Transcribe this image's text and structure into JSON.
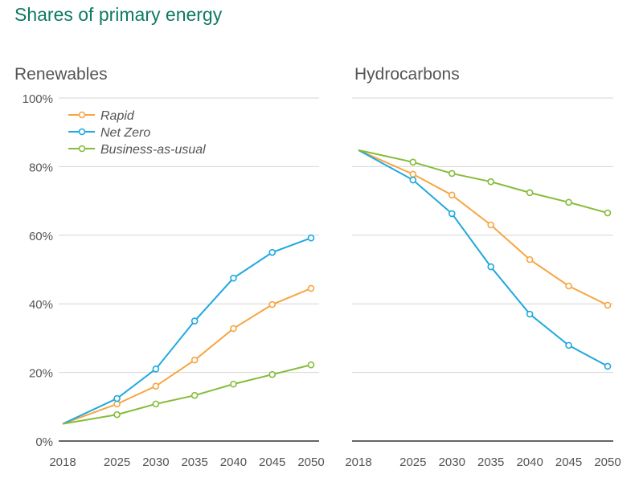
{
  "title": "Shares of primary energy",
  "colors": {
    "Rapid": "#f7a541",
    "Net Zero": "#1fa8e0",
    "Business-as-usual": "#86bc3a"
  },
  "legend_location": "top-left of first panel",
  "chart_data": [
    {
      "type": "line",
      "title": "Renewables",
      "x": [
        2018,
        2025,
        2030,
        2035,
        2040,
        2045,
        2050
      ],
      "ylim": [
        0,
        100
      ],
      "yticks": [
        "0%",
        "20%",
        "40%",
        "60%",
        "80%",
        "100%"
      ],
      "grid": true,
      "series": [
        {
          "name": "Rapid",
          "values": [
            5,
            10.8,
            16,
            23.6,
            32.8,
            39.8,
            44.5
          ]
        },
        {
          "name": "Net Zero",
          "values": [
            5,
            12.4,
            21,
            35,
            47.5,
            55,
            59.2
          ]
        },
        {
          "name": "Business-as-usual",
          "values": [
            5,
            7.7,
            10.8,
            13.3,
            16.6,
            19.4,
            22.2
          ]
        }
      ]
    },
    {
      "type": "line",
      "title": "Hydrocarbons",
      "x": [
        2018,
        2025,
        2030,
        2035,
        2040,
        2045,
        2050
      ],
      "ylim": [
        0,
        100
      ],
      "grid": true,
      "series": [
        {
          "name": "Rapid",
          "values": [
            84.8,
            77.8,
            71.7,
            63,
            52.9,
            45.2,
            39.6
          ]
        },
        {
          "name": "Net Zero",
          "values": [
            84.8,
            76.1,
            66.3,
            50.8,
            37,
            27.9,
            21.8
          ]
        },
        {
          "name": "Business-as-usual",
          "values": [
            84.8,
            81.3,
            78,
            75.6,
            72.4,
            69.6,
            66.5
          ]
        }
      ]
    }
  ]
}
